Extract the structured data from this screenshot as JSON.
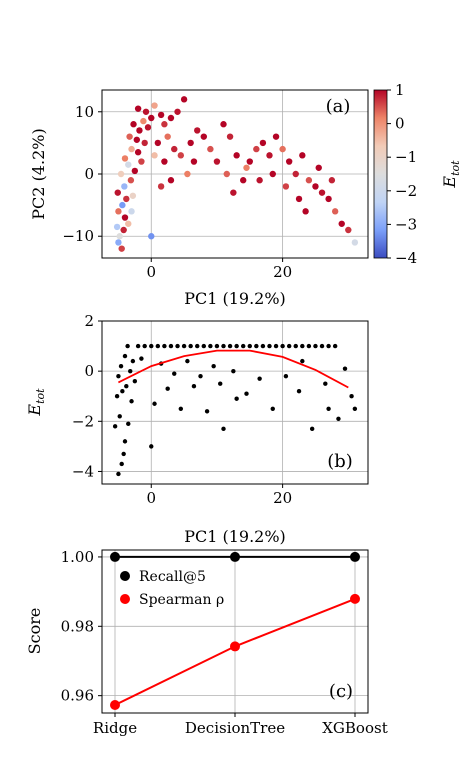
{
  "chart_data": [
    {
      "panel": "(a)",
      "type": "scatter",
      "xlabel": "PC1 (19.2%)",
      "ylabel": "PC2 (4.2%)",
      "xlim": [
        -7.5,
        33
      ],
      "ylim": [
        -13.5,
        13.5
      ],
      "xticks": [
        0,
        20
      ],
      "yticks": [
        -10,
        0,
        10
      ],
      "grid": true,
      "colorbar": {
        "label": "E_tot",
        "label_main": "E",
        "label_sub": "tot",
        "range": [
          -4,
          1
        ],
        "ticks": [
          -4,
          -3,
          -2,
          -1,
          0,
          1
        ],
        "tick_labels": [
          "−4",
          "−3",
          "−2",
          "−1",
          "0",
          "1"
        ],
        "colormap": "coolwarm",
        "colors": [
          "#3b4cc0",
          "#7b9ff9",
          "#c0d4f5",
          "#dddddd",
          "#f2cbb7",
          "#ee8468",
          "#b40426"
        ]
      },
      "points_note": "point cloud colored by E_tot",
      "points": [
        {
          "x": -4.5,
          "y": -12,
          "c": 0.6
        },
        {
          "x": -5,
          "y": -11,
          "c": -3
        },
        {
          "x": -4.8,
          "y": -10,
          "c": -1.5
        },
        {
          "x": -4.2,
          "y": -9,
          "c": 0.8
        },
        {
          "x": -3.5,
          "y": -8,
          "c": -0.5
        },
        {
          "x": -5.2,
          "y": -8.5,
          "c": -2.5
        },
        {
          "x": -4,
          "y": -7,
          "c": 1
        },
        {
          "x": -3,
          "y": -6,
          "c": -2
        },
        {
          "x": -5,
          "y": -6,
          "c": 0.3
        },
        {
          "x": -4.4,
          "y": -5,
          "c": -3.2
        },
        {
          "x": -3.8,
          "y": -4,
          "c": 0.7
        },
        {
          "x": -2.8,
          "y": -3.5,
          "c": -1
        },
        {
          "x": -5.1,
          "y": -3,
          "c": 0.9
        },
        {
          "x": -4.1,
          "y": -2,
          "c": -2.8
        },
        {
          "x": -3.1,
          "y": -1,
          "c": 0.5
        },
        {
          "x": -4.6,
          "y": 0,
          "c": -0.8
        },
        {
          "x": -2.5,
          "y": 0.5,
          "c": 1
        },
        {
          "x": -3.5,
          "y": 1.5,
          "c": -1.8
        },
        {
          "x": -1.5,
          "y": 2,
          "c": 0.6
        },
        {
          "x": -4,
          "y": 2.5,
          "c": 0.2
        },
        {
          "x": -2,
          "y": 3.5,
          "c": 1
        },
        {
          "x": -3,
          "y": 4,
          "c": -0.3
        },
        {
          "x": -1,
          "y": 5,
          "c": 0.8
        },
        {
          "x": -2.2,
          "y": 5.5,
          "c": 1
        },
        {
          "x": -3.3,
          "y": 6,
          "c": 0.4
        },
        {
          "x": -1.8,
          "y": 7,
          "c": 1
        },
        {
          "x": -0.5,
          "y": 7.5,
          "c": 0.9
        },
        {
          "x": -2.7,
          "y": 8,
          "c": 1
        },
        {
          "x": -1.2,
          "y": 8.5,
          "c": 0.1
        },
        {
          "x": 0,
          "y": 9,
          "c": 1
        },
        {
          "x": -0.8,
          "y": 10,
          "c": 0.9
        },
        {
          "x": -2,
          "y": 10.5,
          "c": 1
        },
        {
          "x": 0.5,
          "y": 11,
          "c": -0.2
        },
        {
          "x": 1.5,
          "y": 9.5,
          "c": 1
        },
        {
          "x": 2,
          "y": 8,
          "c": 0.7
        },
        {
          "x": 3,
          "y": 9,
          "c": 1
        },
        {
          "x": 4,
          "y": 10,
          "c": 0.9
        },
        {
          "x": 5,
          "y": 12,
          "c": 1
        },
        {
          "x": 2.5,
          "y": 6,
          "c": 0.3
        },
        {
          "x": 1,
          "y": 5,
          "c": 1
        },
        {
          "x": 3.5,
          "y": 4,
          "c": 0.8
        },
        {
          "x": 0.5,
          "y": 3,
          "c": -0.5
        },
        {
          "x": 2,
          "y": 2,
          "c": 1
        },
        {
          "x": 4.5,
          "y": 3,
          "c": 0.6
        },
        {
          "x": 6,
          "y": 5,
          "c": 1
        },
        {
          "x": 7,
          "y": 7,
          "c": 0.9
        },
        {
          "x": 8,
          "y": 6,
          "c": 1
        },
        {
          "x": 9,
          "y": 4,
          "c": 0.5
        },
        {
          "x": 6.5,
          "y": 2,
          "c": 1
        },
        {
          "x": 5.5,
          "y": 0,
          "c": 0.2
        },
        {
          "x": 3,
          "y": -1,
          "c": 1
        },
        {
          "x": 1.5,
          "y": -2,
          "c": 0.7
        },
        {
          "x": 0,
          "y": -10,
          "c": -3.3
        },
        {
          "x": 11,
          "y": 8,
          "c": 1
        },
        {
          "x": 12,
          "y": 6,
          "c": 0.8
        },
        {
          "x": 13,
          "y": 3,
          "c": 1
        },
        {
          "x": 11.5,
          "y": 0,
          "c": 0.4
        },
        {
          "x": 14,
          "y": -1,
          "c": 1
        },
        {
          "x": 12.5,
          "y": -3,
          "c": 0.9
        },
        {
          "x": 15,
          "y": 2,
          "c": 1
        },
        {
          "x": 16,
          "y": 4,
          "c": 0.6
        },
        {
          "x": 17,
          "y": 5,
          "c": 1
        },
        {
          "x": 18,
          "y": 3,
          "c": 0.9
        },
        {
          "x": 19,
          "y": 6,
          "c": 1
        },
        {
          "x": 20,
          "y": 4,
          "c": 0.3
        },
        {
          "x": 21,
          "y": 2,
          "c": 1
        },
        {
          "x": 22,
          "y": 0,
          "c": 0.8
        },
        {
          "x": 23,
          "y": 3,
          "c": 1
        },
        {
          "x": 24,
          "y": -1,
          "c": 0.5
        },
        {
          "x": 25,
          "y": -2,
          "c": 1
        },
        {
          "x": 26,
          "y": -3,
          "c": 0.9
        },
        {
          "x": 27,
          "y": -4,
          "c": 1
        },
        {
          "x": 28,
          "y": -6,
          "c": 0.4
        },
        {
          "x": 29,
          "y": -8,
          "c": 1
        },
        {
          "x": 30,
          "y": -9,
          "c": 0.7
        },
        {
          "x": 31,
          "y": -11,
          "c": -1.8
        },
        {
          "x": 22.5,
          "y": -4,
          "c": 1
        },
        {
          "x": 20.5,
          "y": -2,
          "c": 0.6
        },
        {
          "x": 18.5,
          "y": 0,
          "c": 1
        },
        {
          "x": 16.5,
          "y": -1,
          "c": 0.9
        },
        {
          "x": 14.5,
          "y": 1,
          "c": 0.2
        },
        {
          "x": 25.5,
          "y": 1,
          "c": 1
        },
        {
          "x": 27.5,
          "y": -1,
          "c": 0.8
        },
        {
          "x": 23.5,
          "y": -6,
          "c": 1
        },
        {
          "x": 10,
          "y": 2,
          "c": 0.9
        }
      ]
    },
    {
      "panel": "(b)",
      "type": "scatter",
      "xlabel": "PC1 (19.2%)",
      "ylabel": "E_tot",
      "ylabel_main": "E",
      "ylabel_sub": "tot",
      "xlim": [
        -7.5,
        33
      ],
      "ylim": [
        -4.5,
        2
      ],
      "xticks": [
        0,
        20
      ],
      "yticks": [
        -4,
        -2,
        0,
        2
      ],
      "ytick_labels": [
        "−4",
        "−2",
        "0",
        "2"
      ],
      "grid": true,
      "series": [
        {
          "marker_color": "#000000",
          "points": [
            {
              "x": -5,
              "y": -4.1
            },
            {
              "x": -4.5,
              "y": -3.7
            },
            {
              "x": -4.2,
              "y": -3.3
            },
            {
              "x": -5.5,
              "y": -2.2
            },
            {
              "x": -4,
              "y": -2.8
            },
            {
              "x": -3.5,
              "y": -2.1
            },
            {
              "x": -4.8,
              "y": -1.8
            },
            {
              "x": -3,
              "y": -1.2
            },
            {
              "x": -5.2,
              "y": -1
            },
            {
              "x": -4.4,
              "y": -0.8
            },
            {
              "x": -3.8,
              "y": -0.6
            },
            {
              "x": -2.5,
              "y": -0.4
            },
            {
              "x": -5,
              "y": -0.2
            },
            {
              "x": -3.2,
              "y": 0
            },
            {
              "x": -4.6,
              "y": 0.2
            },
            {
              "x": -2.8,
              "y": 0.4
            },
            {
              "x": -4,
              "y": 0.6
            },
            {
              "x": -3.6,
              "y": 1
            },
            {
              "x": -2,
              "y": 1
            },
            {
              "x": -1,
              "y": 1
            },
            {
              "x": 0,
              "y": 1
            },
            {
              "x": 1,
              "y": 1
            },
            {
              "x": 2,
              "y": 1
            },
            {
              "x": 3,
              "y": 1
            },
            {
              "x": 4,
              "y": 1
            },
            {
              "x": 5,
              "y": 1
            },
            {
              "x": 6,
              "y": 1
            },
            {
              "x": 7,
              "y": 1
            },
            {
              "x": 8,
              "y": 1
            },
            {
              "x": 9,
              "y": 1
            },
            {
              "x": 10,
              "y": 1
            },
            {
              "x": 11,
              "y": 1
            },
            {
              "x": 12,
              "y": 1
            },
            {
              "x": 13,
              "y": 1
            },
            {
              "x": 14,
              "y": 1
            },
            {
              "x": 15,
              "y": 1
            },
            {
              "x": 16,
              "y": 1
            },
            {
              "x": 17,
              "y": 1
            },
            {
              "x": 18,
              "y": 1
            },
            {
              "x": 19,
              "y": 1
            },
            {
              "x": 20,
              "y": 1
            },
            {
              "x": 21,
              "y": 1
            },
            {
              "x": 22,
              "y": 1
            },
            {
              "x": 23,
              "y": 1
            },
            {
              "x": 24,
              "y": 1
            },
            {
              "x": 25,
              "y": 1
            },
            {
              "x": 26,
              "y": 1
            },
            {
              "x": 27,
              "y": 1
            },
            {
              "x": 28,
              "y": 1
            },
            {
              "x": -1.5,
              "y": 0.5
            },
            {
              "x": 1.5,
              "y": 0.3
            },
            {
              "x": 3.5,
              "y": -0.1
            },
            {
              "x": 5.5,
              "y": 0.4
            },
            {
              "x": 7.5,
              "y": -0.2
            },
            {
              "x": 9.5,
              "y": 0.2
            },
            {
              "x": 0.5,
              "y": -1.3
            },
            {
              "x": 2.5,
              "y": -0.7
            },
            {
              "x": 4.5,
              "y": -1.5
            },
            {
              "x": 6.5,
              "y": -0.6
            },
            {
              "x": 8.5,
              "y": -1.6
            },
            {
              "x": 10.5,
              "y": -0.5
            },
            {
              "x": 12.5,
              "y": 0
            },
            {
              "x": 14.5,
              "y": -0.9
            },
            {
              "x": 16.5,
              "y": -0.3
            },
            {
              "x": 18.5,
              "y": -1.5
            },
            {
              "x": 20.5,
              "y": -0.2
            },
            {
              "x": 22.5,
              "y": -0.8
            },
            {
              "x": 24.5,
              "y": -2.3
            },
            {
              "x": 26.5,
              "y": -0.5
            },
            {
              "x": 28.5,
              "y": -1.9
            },
            {
              "x": 30.5,
              "y": -1
            },
            {
              "x": 31,
              "y": -1.5
            },
            {
              "x": 29.5,
              "y": 0.1
            },
            {
              "x": 27,
              "y": -1.5
            },
            {
              "x": 23,
              "y": 0.4
            },
            {
              "x": 13,
              "y": -1.1
            },
            {
              "x": 11,
              "y": -2.3
            },
            {
              "x": 0,
              "y": -3
            }
          ]
        },
        {
          "type": "line",
          "line_color": "#ff0000",
          "x": [
            -5,
            0,
            5,
            10,
            15,
            20,
            25,
            30
          ],
          "y": [
            -0.45,
            0.2,
            0.6,
            0.82,
            0.82,
            0.57,
            0.05,
            -0.65
          ]
        }
      ]
    },
    {
      "panel": "(c)",
      "type": "line",
      "categories": [
        "Ridge",
        "DecisionTree",
        "XGBoost"
      ],
      "ylabel": "Score",
      "ylim": [
        0.955,
        1.002
      ],
      "yticks": [
        0.96,
        0.98,
        1.0
      ],
      "ytick_labels": [
        "0.96",
        "0.98",
        "1.00"
      ],
      "grid": true,
      "legend_position": "upper-left",
      "series": [
        {
          "name": "Recall@5",
          "color": "#000000",
          "values": [
            1.0,
            1.0,
            1.0
          ]
        },
        {
          "name": "Spearman ρ",
          "color": "#ff0000",
          "values": [
            0.9573,
            0.9742,
            0.9879
          ]
        }
      ]
    }
  ]
}
